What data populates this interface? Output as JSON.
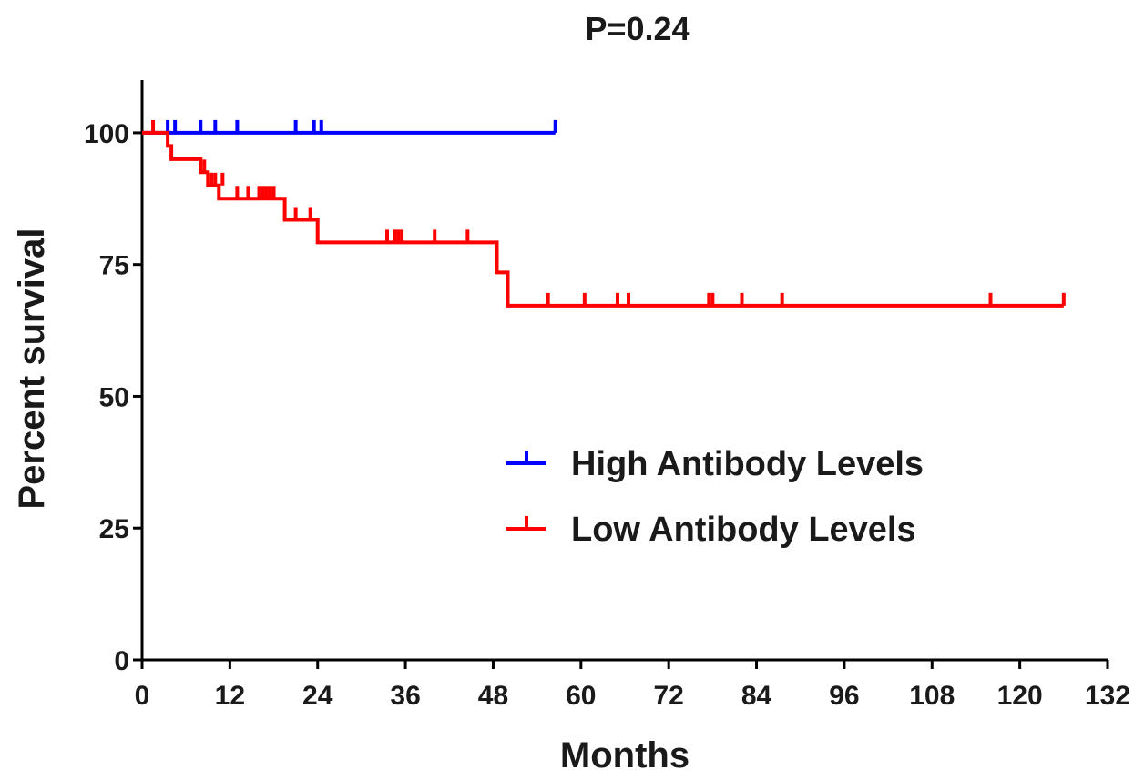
{
  "chart_data": {
    "type": "line",
    "title": "P=0.24",
    "xlabel": "Months",
    "ylabel": "Percent survival",
    "xlim": [
      0,
      132
    ],
    "ylim": [
      0,
      110
    ],
    "x_ticks": [
      "0",
      "12",
      "24",
      "36",
      "48",
      "60",
      "72",
      "84",
      "96",
      "108",
      "120",
      "132"
    ],
    "y_ticks": [
      "0",
      "25",
      "50",
      "75",
      "100"
    ],
    "legend_position": "center-right",
    "grid": false,
    "series": [
      {
        "name": "High Antibody Levels",
        "color": "#0000ff",
        "step_points": [
          [
            0,
            100
          ],
          [
            56.5,
            100
          ]
        ],
        "censor_marks": [
          [
            3.5,
            100
          ],
          [
            4.5,
            100
          ],
          [
            8,
            100
          ],
          [
            10,
            100
          ],
          [
            13,
            100
          ],
          [
            21,
            100
          ],
          [
            23.5,
            100
          ],
          [
            24.5,
            100
          ],
          [
            56.5,
            100
          ]
        ]
      },
      {
        "name": "Low Antibody Levels",
        "color": "#ff0000",
        "step_points": [
          [
            0,
            100
          ],
          [
            3.5,
            100
          ],
          [
            3.5,
            97.5
          ],
          [
            4,
            97.5
          ],
          [
            4,
            95
          ],
          [
            8,
            95
          ],
          [
            8,
            92.5
          ],
          [
            9,
            92.5
          ],
          [
            9,
            90
          ],
          [
            10.5,
            90
          ],
          [
            10.5,
            87.5
          ],
          [
            16,
            87.5
          ],
          [
            19.5,
            87.5
          ],
          [
            19.5,
            83.5
          ],
          [
            24,
            83.5
          ],
          [
            24,
            79.2
          ],
          [
            48.5,
            79.2
          ],
          [
            48.5,
            73.5
          ],
          [
            50,
            73.5
          ],
          [
            50,
            67.2
          ],
          [
            126,
            67.2
          ]
        ],
        "censor_marks": [
          [
            1.5,
            100
          ],
          [
            8.5,
            92.5
          ],
          [
            9.5,
            90
          ],
          [
            10,
            90
          ],
          [
            11,
            90
          ],
          [
            13,
            87.5
          ],
          [
            14.5,
            87.5
          ],
          [
            16,
            87.5
          ],
          [
            16.5,
            87.5
          ],
          [
            17,
            87.5
          ],
          [
            17.5,
            87.5
          ],
          [
            18,
            87.5
          ],
          [
            21,
            83.5
          ],
          [
            23,
            83.5
          ],
          [
            33.5,
            79.2
          ],
          [
            34.5,
            79.2
          ],
          [
            35,
            79.2
          ],
          [
            35.5,
            79.2
          ],
          [
            40,
            79.2
          ],
          [
            44.5,
            79.2
          ],
          [
            55.5,
            67.2
          ],
          [
            60.5,
            67.2
          ],
          [
            65,
            67.2
          ],
          [
            66.5,
            67.2
          ],
          [
            77.5,
            67.2
          ],
          [
            78,
            67.2
          ],
          [
            82,
            67.2
          ],
          [
            87.5,
            67.2
          ],
          [
            116,
            67.2
          ],
          [
            126,
            67.2
          ]
        ]
      }
    ]
  }
}
